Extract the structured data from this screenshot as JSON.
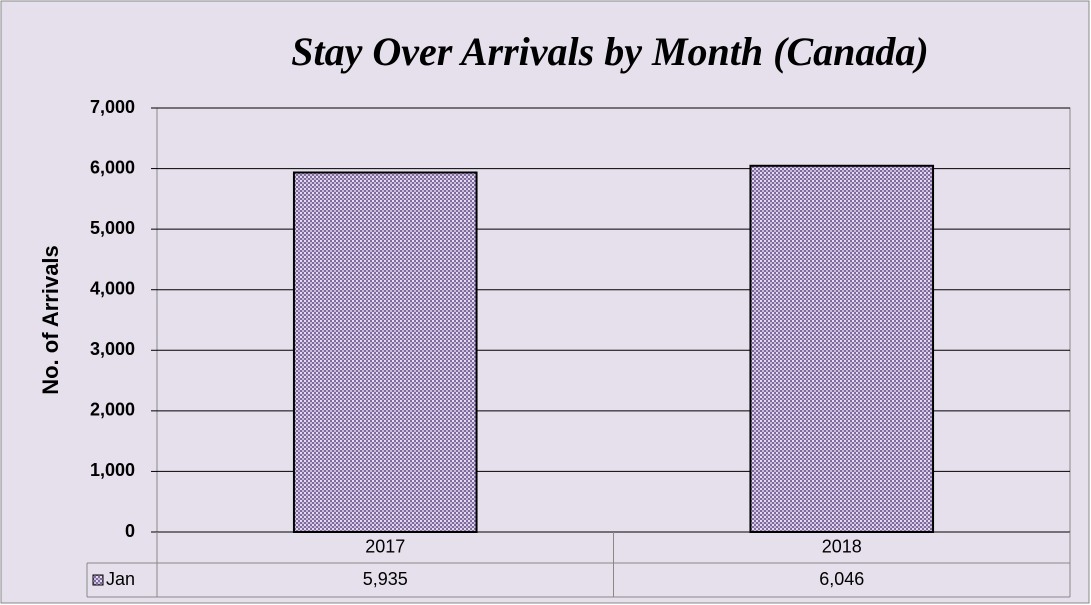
{
  "chart_data": {
    "type": "bar",
    "title": "Stay Over Arrivals by Month (Canada)",
    "y_label": "No. of Arrivals",
    "categories": [
      "2017",
      "2018"
    ],
    "series": [
      {
        "name": "Jan",
        "color": "#7f6a9f",
        "values": [
          5935,
          6046
        ],
        "value_labels": [
          "5,935",
          "6,046"
        ]
      }
    ],
    "ylim": [
      0,
      7000
    ],
    "yticks": [
      0,
      {
        "value": 1000,
        "label": "1,000"
      },
      {
        "value": 2000,
        "label": "2,000"
      },
      {
        "value": 3000,
        "label": "3,000"
      },
      {
        "value": 4000,
        "label": "4,000"
      },
      {
        "value": 5000,
        "label": "5,000"
      },
      {
        "value": 6000,
        "label": "6,000"
      },
      {
        "value": 7000,
        "label": "7,000"
      }
    ],
    "grid": true,
    "data_table": true
  }
}
